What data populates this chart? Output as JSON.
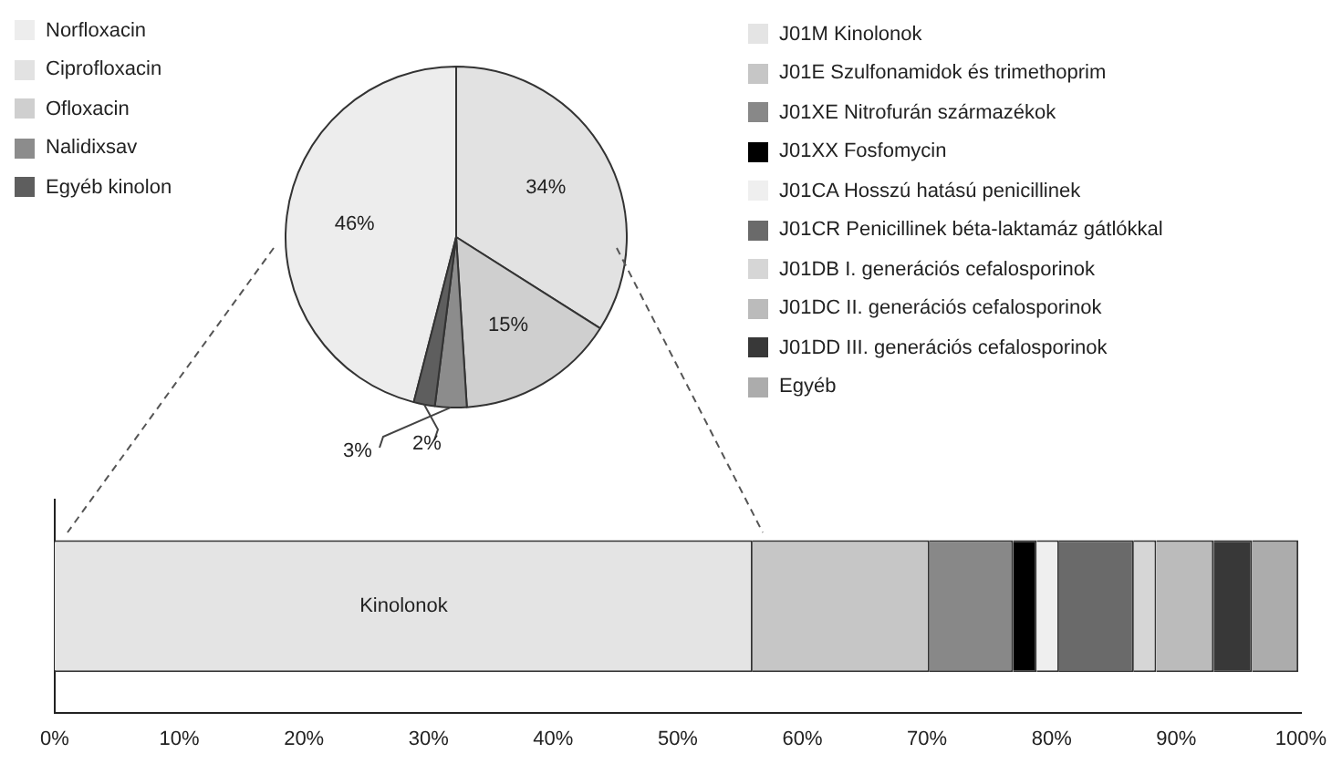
{
  "chart_data": [
    {
      "type": "pie",
      "categories": [
        "Norfloxacin",
        "Ciprofloxacin",
        "Ofloxacin",
        "Nalidixsav",
        "Egyéb kinolon"
      ],
      "values": [
        46,
        34,
        15,
        3,
        2
      ],
      "colors": [
        "#ededed",
        "#e2e2e2",
        "#cfcfcf",
        "#8c8c8c",
        "#5e5e5e"
      ],
      "value_labels": [
        "46%",
        "34%",
        "15%",
        "3%",
        "2%"
      ],
      "legend": "top left"
    },
    {
      "type": "bar",
      "orientation": "horizontal",
      "stacked": true,
      "categories": [
        null
      ],
      "series": [
        {
          "name": "J01M Kinolonok",
          "color": "#e4e4e4",
          "values": [
            56
          ]
        },
        {
          "name": "J01E Szulfonamidok és trimethoprim",
          "color": "#c6c6c6",
          "values": [
            14.2
          ]
        },
        {
          "name": "J01XE Nitrofurán származékok",
          "color": "#888888",
          "values": [
            6.7
          ]
        },
        {
          "name": "J01XX Fosfomycin",
          "color": "#000000",
          "values": [
            1.9
          ]
        },
        {
          "name": "J01CA Hosszú hatású penicillinek",
          "color": "#efefef",
          "values": [
            1.8
          ]
        },
        {
          "name": "J01CR Penicillinek béta-laktamáz gátlókkal",
          "color": "#6a6a6a",
          "values": [
            6.0
          ]
        },
        {
          "name": "J01DB I. generációs cefalosporinok",
          "color": "#d6d6d6",
          "values": [
            1.8
          ]
        },
        {
          "name": "J01DC II. generációs cefalosporinok",
          "color": "#bbbbbb",
          "values": [
            4.6
          ]
        },
        {
          "name": "J01DD III. generációs cefalosporinok",
          "color": "#383838",
          "values": [
            3.1
          ]
        },
        {
          "name": "Egyéb",
          "color": "#acacac",
          "values": [
            3.7
          ]
        }
      ],
      "xlim": [
        0,
        100
      ],
      "xticks": [
        {
          "value": 0,
          "label": "0%"
        },
        {
          "value": 10,
          "label": "10%"
        },
        {
          "value": 20,
          "label": "20%"
        },
        {
          "value": 30,
          "label": "30%"
        },
        {
          "value": 40,
          "label": "40%"
        },
        {
          "value": 50,
          "label": "50%"
        },
        {
          "value": 60,
          "label": "60%"
        },
        {
          "value": 70,
          "label": "70%"
        },
        {
          "value": 80,
          "label": "80%"
        },
        {
          "value": 90,
          "label": "90%"
        },
        {
          "value": 100,
          "label": "100%"
        }
      ],
      "tick_labels": "x",
      "grid": false,
      "legend": "top right",
      "annotations": [
        "Kinolonok"
      ]
    }
  ]
}
